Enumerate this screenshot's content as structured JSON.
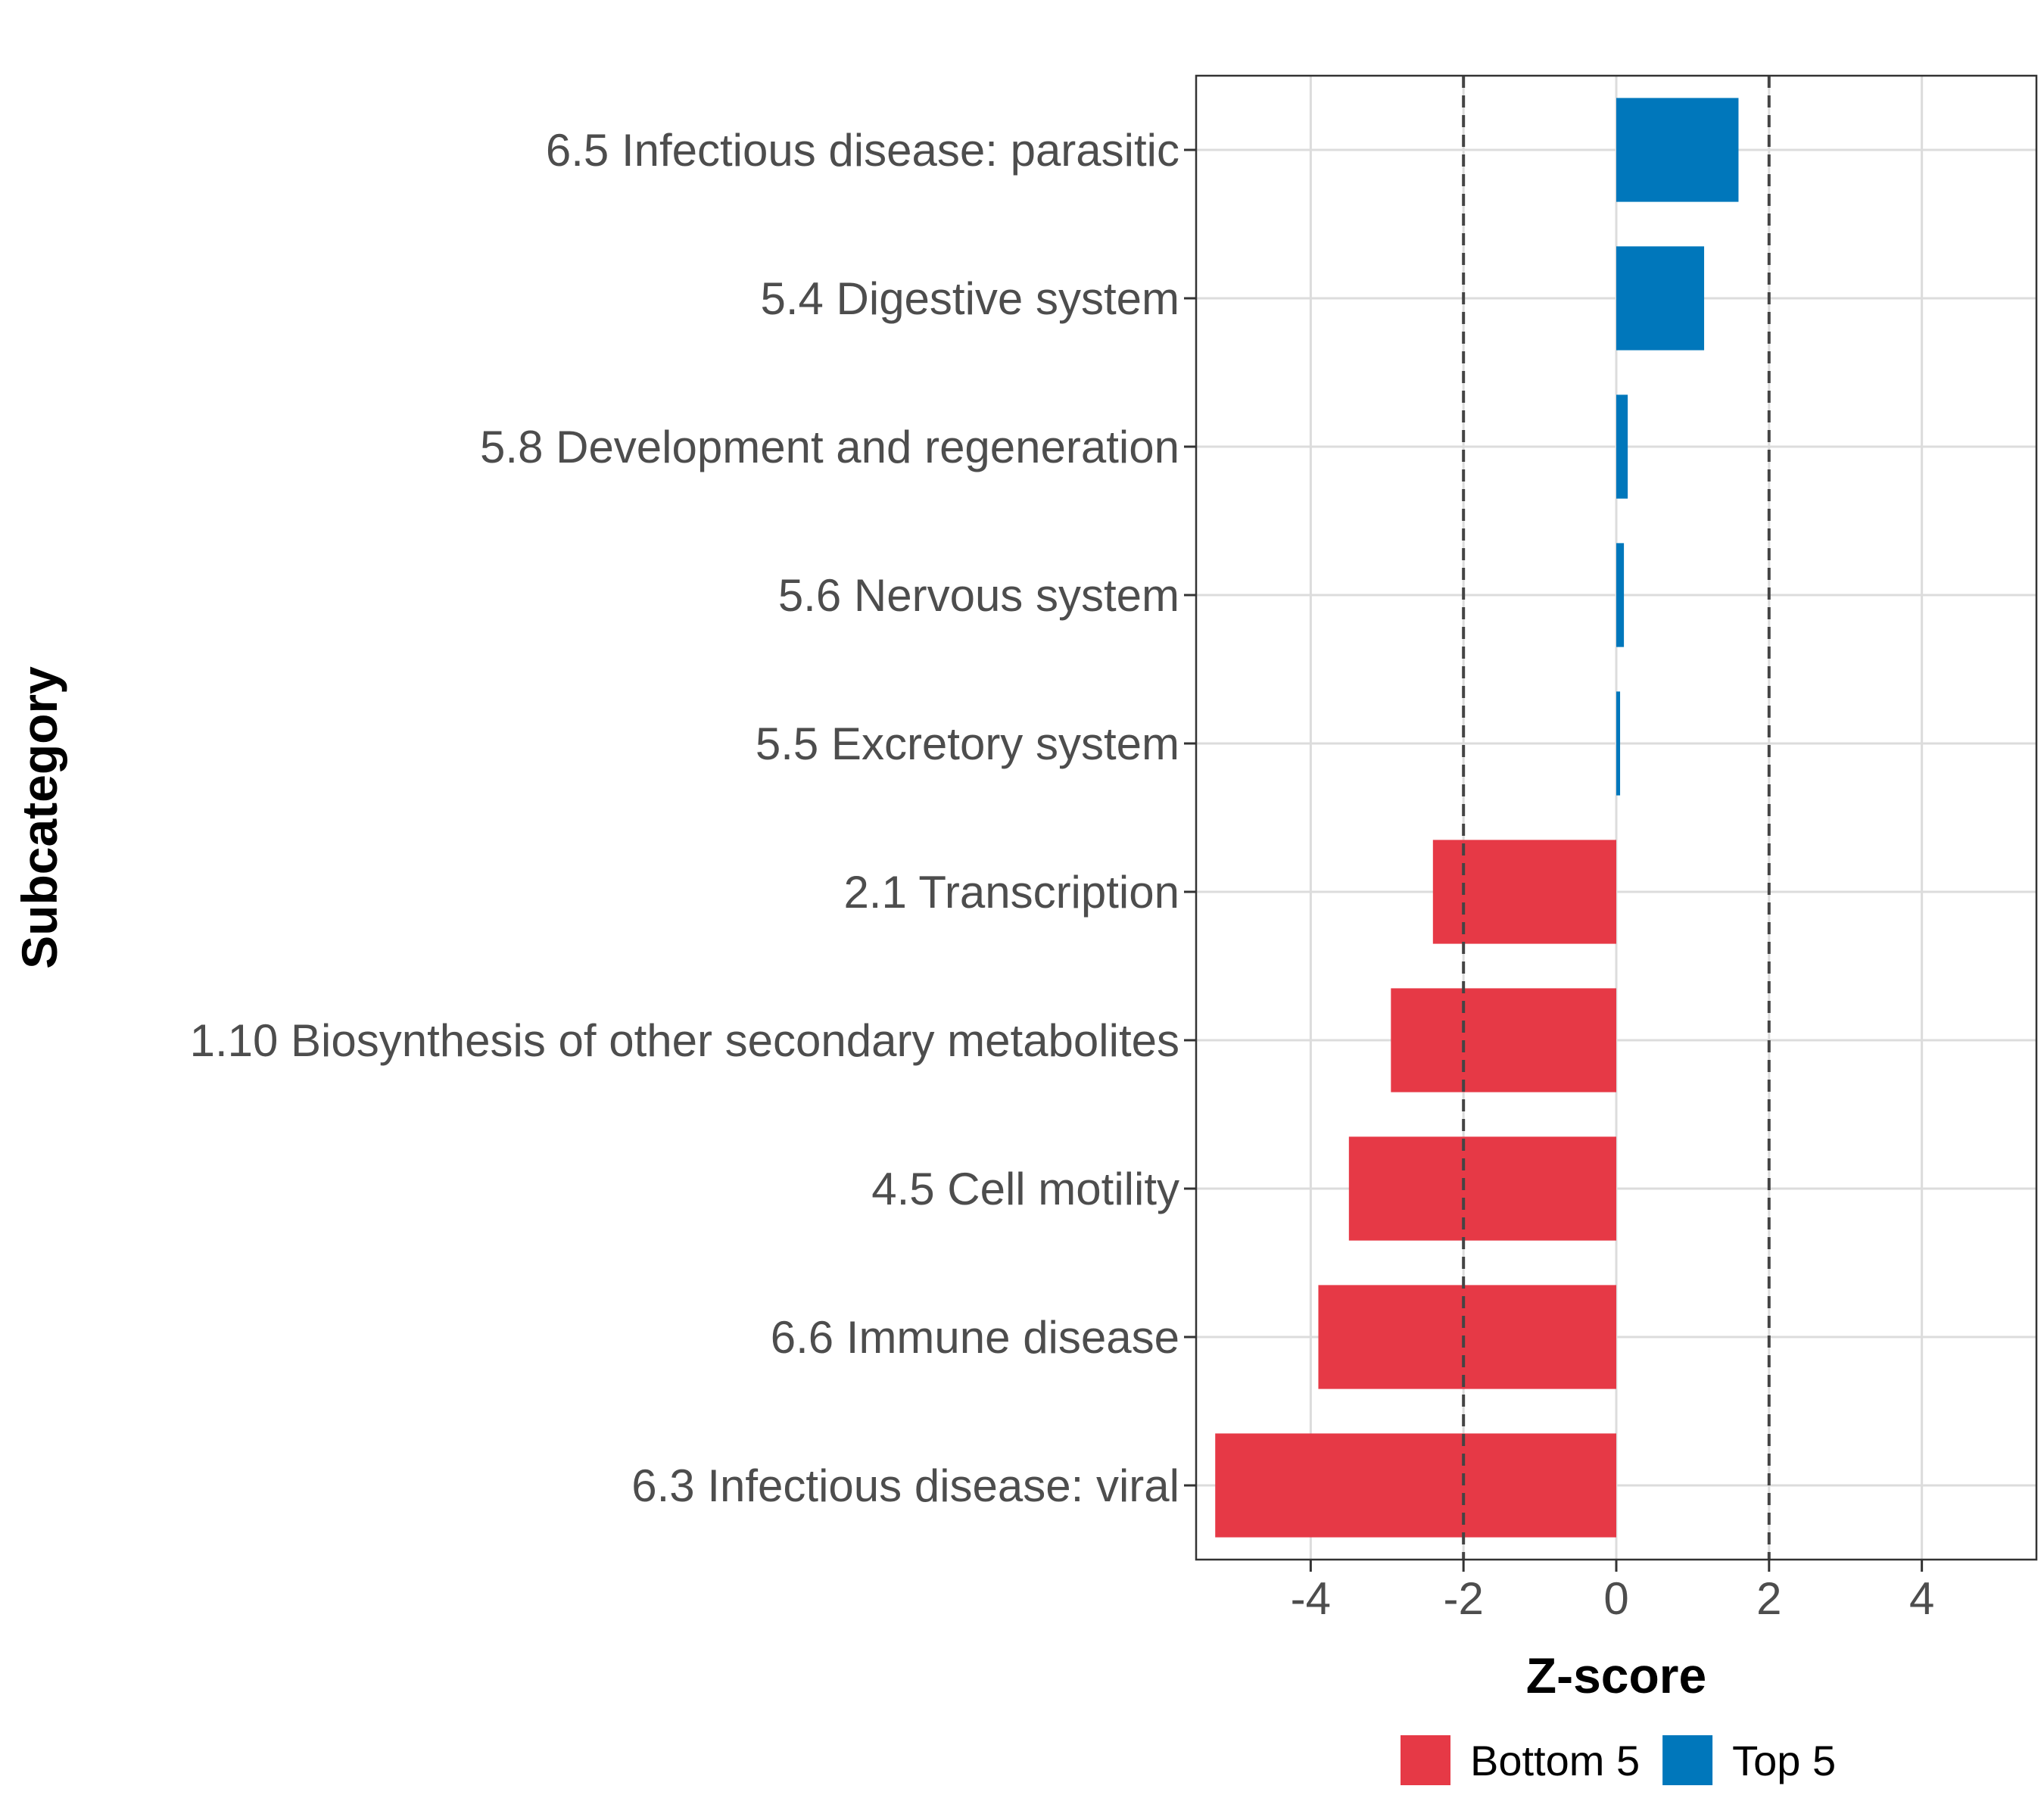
{
  "chart_data": {
    "type": "bar",
    "orientation": "horizontal",
    "title": "",
    "xlabel": "Z-score",
    "ylabel": "Subcategory",
    "xlim": [
      -5.5,
      5.5
    ],
    "xticks": [
      -4,
      -2,
      0,
      2,
      4
    ],
    "reference_lines": [
      -2,
      2
    ],
    "grid": true,
    "legend_position": "bottom",
    "categories": [
      "6.5 Infectious disease: parasitic",
      "5.4 Digestive system",
      "5.8 Development and regeneration",
      "5.6 Nervous system",
      "5.5 Excretory system",
      "2.1 Transcription",
      "1.10 Biosynthesis of other secondary metabolites",
      "4.5 Cell motility",
      "6.6 Immune disease",
      "6.3 Infectious disease: viral"
    ],
    "values": [
      1.6,
      1.15,
      0.15,
      0.1,
      0.05,
      -2.4,
      -2.95,
      -3.5,
      -3.9,
      -5.25
    ],
    "groups": [
      "Top 5",
      "Top 5",
      "Top 5",
      "Top 5",
      "Top 5",
      "Bottom 5",
      "Bottom 5",
      "Bottom 5",
      "Bottom 5",
      "Bottom 5"
    ],
    "legend": [
      {
        "name": "Bottom 5",
        "color": "#e63946"
      },
      {
        "name": "Top 5",
        "color": "#0077bb"
      }
    ]
  }
}
